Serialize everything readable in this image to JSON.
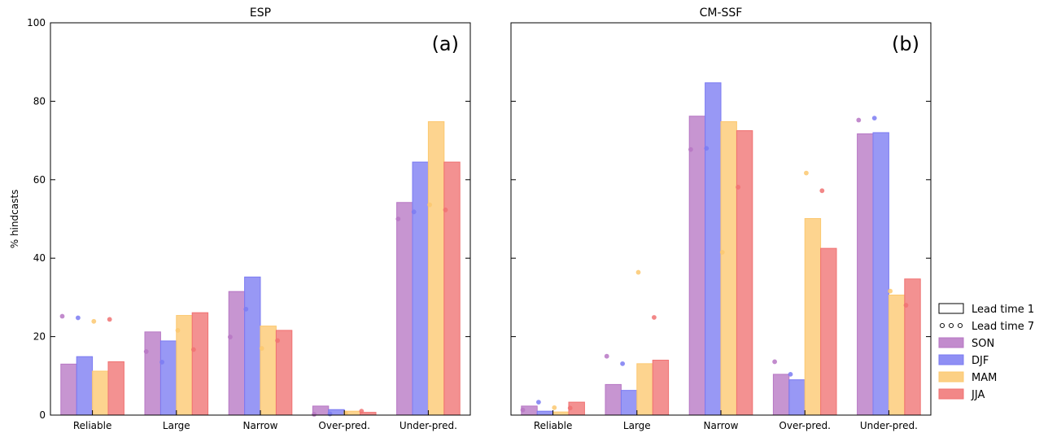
{
  "chart_data": [
    {
      "type": "bar",
      "title": "ESP",
      "panel_label": "(a)",
      "xlabel": "",
      "ylabel": "% hindcasts",
      "ylim": [
        0,
        100
      ],
      "yticks": [
        0,
        20,
        40,
        60,
        80,
        100
      ],
      "categories": [
        "Reliable",
        "Large",
        "Narrow",
        "Over-pred.",
        "Under-pred."
      ],
      "series": [
        {
          "name": "SON",
          "color": "#b777c4",
          "lead1": [
            13.0,
            21.2,
            31.5,
            2.3,
            54.2
          ],
          "lead7": [
            25.2,
            16.2,
            19.9,
            0.2,
            50.0
          ]
        },
        {
          "name": "DJF",
          "color": "#7b7bf2",
          "lead1": [
            14.9,
            18.9,
            35.2,
            1.4,
            64.5
          ],
          "lead7": [
            24.8,
            13.5,
            27.0,
            0.3,
            51.8
          ]
        },
        {
          "name": "MAM",
          "color": "#fcc870",
          "lead1": [
            11.2,
            25.4,
            22.7,
            1.0,
            74.8
          ],
          "lead7": [
            23.9,
            21.6,
            17.0,
            0.5,
            53.6
          ]
        },
        {
          "name": "JJA",
          "color": "#f07272",
          "lead1": [
            13.6,
            26.1,
            21.6,
            0.7,
            64.5
          ],
          "lead7": [
            24.4,
            16.7,
            19.0,
            1.0,
            52.3
          ]
        }
      ]
    },
    {
      "type": "bar",
      "title": "CM-SSF",
      "panel_label": "(b)",
      "xlabel": "",
      "ylabel": "",
      "ylim": [
        0,
        100
      ],
      "categories": [
        "Reliable",
        "Large",
        "Narrow",
        "Over-pred.",
        "Under-pred."
      ],
      "series": [
        {
          "name": "SON",
          "color": "#b777c4",
          "lead1": [
            2.3,
            7.8,
            76.2,
            10.4,
            71.7
          ],
          "lead7": [
            1.3,
            15.0,
            67.7,
            13.6,
            75.2
          ]
        },
        {
          "name": "DJF",
          "color": "#7b7bf2",
          "lead1": [
            1.0,
            6.3,
            84.7,
            9.0,
            72.0
          ],
          "lead7": [
            3.3,
            13.1,
            68.0,
            10.4,
            75.7
          ]
        },
        {
          "name": "MAM",
          "color": "#fcc870",
          "lead1": [
            0.8,
            13.1,
            74.8,
            50.1,
            30.6
          ],
          "lead7": [
            1.9,
            36.4,
            41.5,
            61.7,
            31.6
          ]
        },
        {
          "name": "JJA",
          "color": "#f07272",
          "lead1": [
            3.3,
            14.0,
            72.5,
            42.5,
            34.7
          ],
          "lead7": [
            1.8,
            24.9,
            58.1,
            57.2,
            28.0
          ]
        }
      ]
    }
  ],
  "legend": {
    "placement": "right",
    "items": [
      {
        "label": "Lead time 1",
        "kind": "outline-box"
      },
      {
        "label": "Lead time 7",
        "kind": "dots"
      },
      {
        "label": "SON",
        "kind": "swatch",
        "color": "#b777c4"
      },
      {
        "label": "DJF",
        "kind": "swatch",
        "color": "#7b7bf2"
      },
      {
        "label": "MAM",
        "kind": "swatch",
        "color": "#fcc870"
      },
      {
        "label": "JJA",
        "kind": "swatch",
        "color": "#f07272"
      }
    ]
  }
}
